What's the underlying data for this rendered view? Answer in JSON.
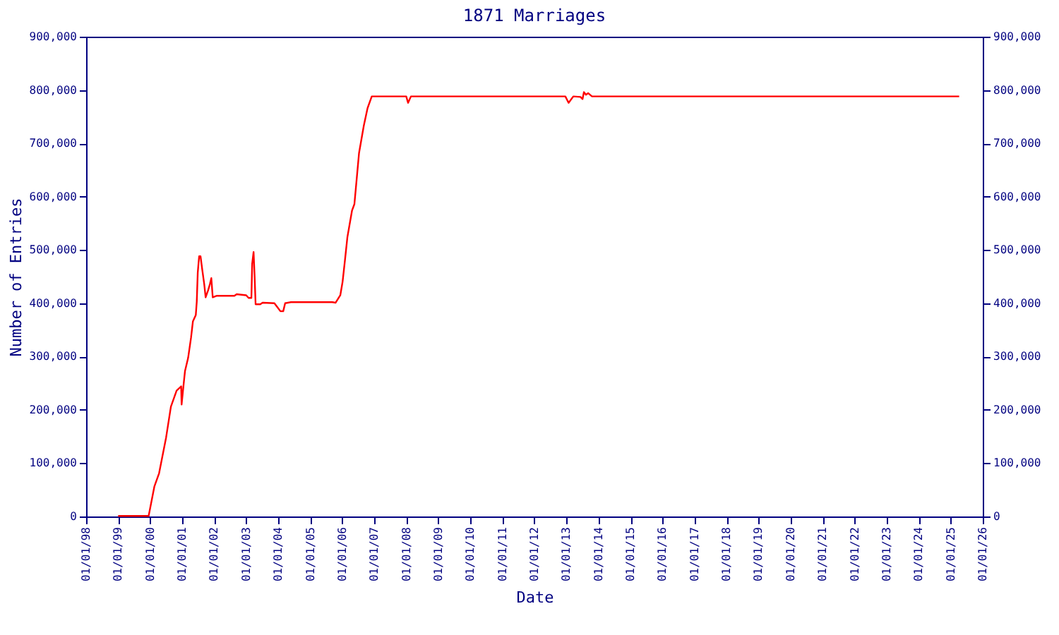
{
  "chart_data": {
    "type": "line",
    "title": "1871 Marriages",
    "xlabel": "Date",
    "ylabel": "Number of Entries",
    "x": [
      "1999-01-01",
      "1999-12-15",
      "2000-02-18",
      "2000-04-12",
      "2000-07-01",
      "2000-08-25",
      "2000-10-29",
      "2000-12-20",
      "2000-12-25",
      "2001-01-17",
      "2001-02-02",
      "2001-03-10",
      "2001-04-12",
      "2001-05-03",
      "2001-06-05",
      "2001-06-16",
      "2001-06-27",
      "2001-07-13",
      "2001-07-29",
      "2001-08-19",
      "2001-09-09",
      "2001-09-25",
      "2001-10-23",
      "2001-11-13",
      "2001-11-29",
      "2001-12-15",
      "2002-02-01",
      "2002-08-19",
      "2002-09-14",
      "2003-01-01",
      "2003-01-28",
      "2003-03-01",
      "2003-03-10",
      "2003-03-26",
      "2003-04-07",
      "2003-04-18",
      "2003-06-10",
      "2003-07-07",
      "2003-11-18",
      "2003-12-25",
      "2004-01-26",
      "2004-02-27",
      "2004-03-20",
      "2004-05-25",
      "2005-09-09",
      "2005-10-16",
      "2005-12-09",
      "2006-01-04",
      "2006-02-01",
      "2006-02-28",
      "2006-04-22",
      "2006-05-19",
      "2006-07-11",
      "2006-09-03",
      "2006-10-16",
      "2006-12-03",
      "2007-12-31",
      "2008-01-21",
      "2008-02-23",
      "2012-12-19",
      "2013-01-25",
      "2013-03-20",
      "2013-06-09",
      "2013-07-03",
      "2013-07-19",
      "2013-08-11",
      "2013-09-06",
      "2013-10-19",
      "2025-04-07"
    ],
    "series": [
      {
        "color": "#ff0000",
        "values": [
          1000,
          1000,
          56000,
          81000,
          148000,
          206000,
          236000,
          244000,
          210000,
          248000,
          273000,
          298000,
          336000,
          366000,
          378000,
          403000,
          457000,
          488000,
          488000,
          461000,
          436000,
          411000,
          424000,
          436000,
          447000,
          411000,
          414000,
          414000,
          417000,
          415000,
          410000,
          410000,
          474000,
          496000,
          449000,
          398000,
          398000,
          401000,
          400000,
          392000,
          385000,
          385000,
          400000,
          402000,
          402000,
          401000,
          415000,
          440000,
          482000,
          524000,
          574000,
          586000,
          682000,
          733000,
          766000,
          788000,
          788000,
          776000,
          788000,
          788000,
          776000,
          788000,
          787000,
          783000,
          796000,
          791000,
          794000,
          788000,
          788000
        ]
      }
    ],
    "xlim": [
      "1998-01-01",
      "2026-01-01"
    ],
    "xticks": [
      {
        "value": "1998-01-01",
        "label": "01/01/98"
      },
      {
        "value": "1999-01-01",
        "label": "01/01/99"
      },
      {
        "value": "2000-01-01",
        "label": "01/01/00"
      },
      {
        "value": "2001-01-01",
        "label": "01/01/01"
      },
      {
        "value": "2002-01-01",
        "label": "01/01/02"
      },
      {
        "value": "2003-01-01",
        "label": "01/01/03"
      },
      {
        "value": "2004-01-01",
        "label": "01/01/04"
      },
      {
        "value": "2005-01-01",
        "label": "01/01/05"
      },
      {
        "value": "2006-01-01",
        "label": "01/01/06"
      },
      {
        "value": "2007-01-01",
        "label": "01/01/07"
      },
      {
        "value": "2008-01-01",
        "label": "01/01/08"
      },
      {
        "value": "2009-01-01",
        "label": "01/01/09"
      },
      {
        "value": "2010-01-01",
        "label": "01/01/10"
      },
      {
        "value": "2011-01-01",
        "label": "01/01/11"
      },
      {
        "value": "2012-01-01",
        "label": "01/01/12"
      },
      {
        "value": "2013-01-01",
        "label": "01/01/13"
      },
      {
        "value": "2014-01-01",
        "label": "01/01/14"
      },
      {
        "value": "2015-01-01",
        "label": "01/01/15"
      },
      {
        "value": "2016-01-01",
        "label": "01/01/16"
      },
      {
        "value": "2017-01-01",
        "label": "01/01/17"
      },
      {
        "value": "2018-01-01",
        "label": "01/01/18"
      },
      {
        "value": "2019-01-01",
        "label": "01/01/19"
      },
      {
        "value": "2020-01-01",
        "label": "01/01/20"
      },
      {
        "value": "2021-01-01",
        "label": "01/01/21"
      },
      {
        "value": "2022-01-01",
        "label": "01/01/22"
      },
      {
        "value": "2023-01-01",
        "label": "01/01/23"
      },
      {
        "value": "2024-01-01",
        "label": "01/01/24"
      },
      {
        "value": "2025-01-01",
        "label": "01/01/25"
      },
      {
        "value": "2026-01-01",
        "label": "01/01/26"
      }
    ],
    "ylim": [
      0,
      900000
    ],
    "yticks": [
      0,
      {
        "value": 100000,
        "label": "100,000"
      },
      {
        "value": 200000,
        "label": "200,000"
      },
      {
        "value": 300000,
        "label": "300,000"
      },
      {
        "value": 400000,
        "label": "400,000"
      },
      {
        "value": 500000,
        "label": "500,000"
      },
      {
        "value": 600000,
        "label": "600,000"
      },
      {
        "value": 700000,
        "label": "700,000"
      },
      {
        "value": 800000,
        "label": "800,000"
      },
      {
        "value": 900000,
        "label": "900,000"
      }
    ],
    "y2lim": [
      0,
      900000
    ],
    "y2ticks": [
      0,
      {
        "value": 100000,
        "label": "100,000"
      },
      {
        "value": 200000,
        "label": "200,000"
      },
      {
        "value": 300000,
        "label": "300,000"
      },
      {
        "value": 400000,
        "label": "400,000"
      },
      {
        "value": 500000,
        "label": "500,000"
      },
      {
        "value": 600000,
        "label": "600,000"
      },
      {
        "value": 700000,
        "label": "700,000"
      },
      {
        "value": 800000,
        "label": "800,000"
      },
      {
        "value": 900000,
        "label": "900,000"
      }
    ],
    "grid": false,
    "legend": false,
    "marker": "none",
    "line_style": "solid"
  }
}
